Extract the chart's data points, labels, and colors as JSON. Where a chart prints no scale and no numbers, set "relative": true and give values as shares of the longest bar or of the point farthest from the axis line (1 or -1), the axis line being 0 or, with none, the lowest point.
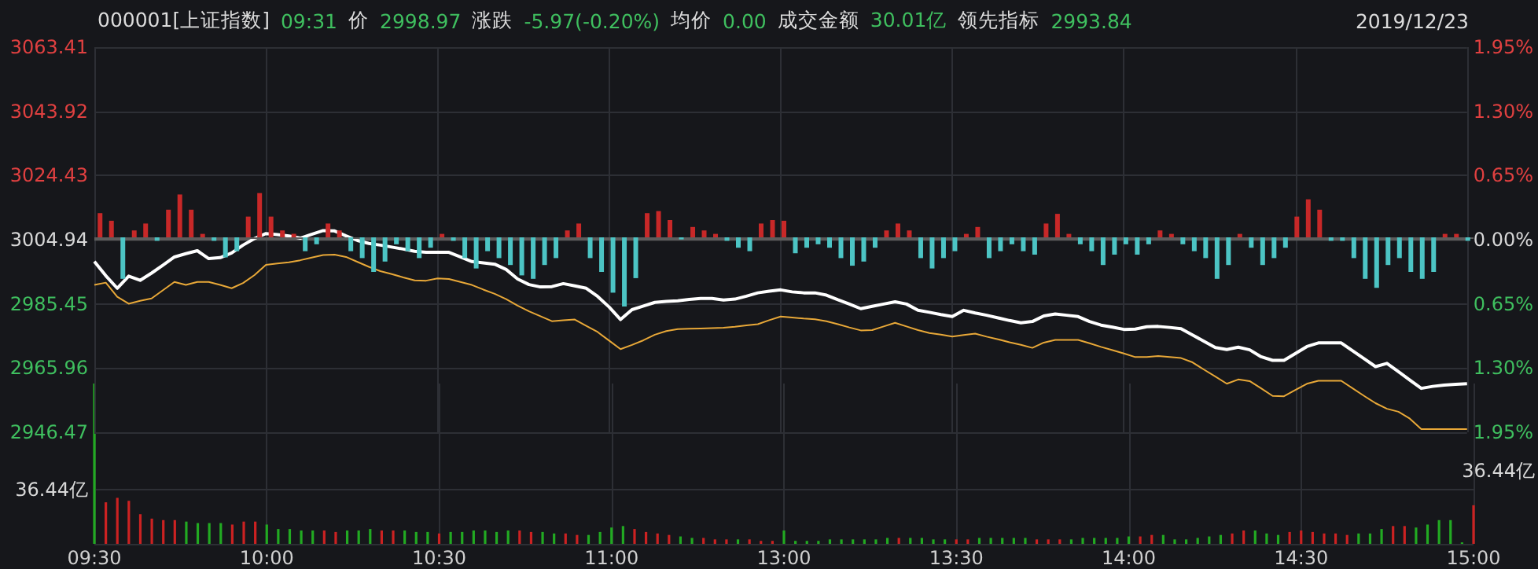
{
  "chart_data": [
    {
      "type": "line",
      "annotations": [
        "000001[上证指数]",
        "09:31",
        "价",
        "2998.97",
        "涨跌",
        "-5.97(-0.20%)",
        "均价",
        "0.00",
        "成交金额",
        "30.01亿",
        "领先指标",
        "2993.84",
        "2019/12/23"
      ],
      "categories": [
        null,
        null,
        null,
        null,
        null,
        null,
        null,
        null,
        null,
        null,
        null,
        null,
        null,
        null,
        null,
        null,
        null,
        null,
        null,
        null,
        null,
        null,
        null,
        null,
        null,
        null,
        null,
        null,
        null,
        null,
        null,
        null,
        null,
        null,
        null,
        null,
        null,
        null,
        null,
        null,
        null,
        null,
        null,
        null,
        null,
        null,
        null,
        null,
        null,
        null,
        null,
        null,
        null,
        null,
        null,
        null,
        null,
        null,
        null,
        null,
        null,
        null,
        null,
        null,
        null,
        null,
        null,
        null,
        null,
        null,
        null,
        null,
        null,
        null,
        null,
        null,
        null,
        null,
        null,
        null,
        null,
        null,
        null,
        null,
        null,
        null,
        null,
        null,
        null,
        null,
        null,
        null,
        null,
        null,
        null,
        null,
        null,
        null,
        null,
        null,
        null,
        null,
        null,
        null,
        null,
        null,
        null,
        null,
        null,
        null,
        null,
        null,
        null,
        null,
        null,
        null,
        null,
        null,
        null,
        null,
        null
      ],
      "series": [
        {
          "color": "#ffffff",
          "values": [
            2998.3,
            2994.0,
            2990.2,
            2993.9,
            2992.6,
            2994.8,
            2997.2,
            2999.7,
            3000.7,
            3001.6,
            2999.2,
            2999.5,
            3000.9,
            3003.3,
            3005.3,
            3006.8,
            3006.5,
            3006.1,
            3005.4,
            3006.6,
            3007.7,
            3007.6,
            3006.1,
            3004.7,
            3003.8,
            3003.3,
            3002.7,
            3002.1,
            3001.4,
            3001.1,
            3001.1,
            3001.1,
            2999.7,
            2998.3,
            2997.9,
            2997.5,
            2995.9,
            2993.0,
            2991.3,
            2990.6,
            2990.7,
            2991.6,
            2990.9,
            2990.2,
            2987.7,
            2984.5,
            2980.7,
            2983.7,
            2984.8,
            2985.9,
            2986.2,
            2986.4,
            2986.8,
            2987.1,
            2987.1,
            2986.6,
            2986.9,
            2987.8,
            2988.8,
            2989.3,
            2989.7,
            2989.1,
            2988.8,
            2988.8,
            2988.1,
            2986.7,
            2985.4,
            2984.0,
            2984.7,
            2985.4,
            2986.1,
            2985.4,
            2983.5,
            2982.9,
            2982.2,
            2981.6,
            2983.5,
            2982.7,
            2982.0,
            2981.2,
            2980.4,
            2979.7,
            2980.1,
            2981.8,
            2982.4,
            2982.0,
            2981.6,
            2980.1,
            2979.0,
            2978.4,
            2977.7,
            2977.8,
            2978.5,
            2978.6,
            2978.3,
            2977.9,
            2976.0,
            2974.1,
            2972.2,
            2971.6,
            2972.3,
            2971.5,
            2969.4,
            2968.3,
            2968.3,
            2970.4,
            2972.5,
            2973.6,
            2973.6,
            2973.6,
            2971.2,
            2968.8,
            2966.4,
            2967.4,
            2964.9,
            2962.3,
            2959.8,
            2960.4,
            2960.8,
            2961.0,
            2961.2
          ]
        },
        {
          "color": "#e8a838",
          "values": [
            2991.2,
            2991.9,
            2987.6,
            2985.5,
            2986.4,
            2987.1,
            2989.6,
            2992.1,
            2991.2,
            2992.1,
            2992.1,
            2991.2,
            2990.2,
            2991.8,
            2994.2,
            2997.3,
            2997.7,
            2998.1,
            2998.7,
            2999.5,
            3000.3,
            3000.4,
            2999.7,
            2998.2,
            2996.7,
            2995.4,
            2994.5,
            2993.5,
            2992.6,
            2992.5,
            2993.2,
            2993.0,
            2992.1,
            2991.2,
            2989.8,
            2988.5,
            2986.9,
            2984.9,
            2983.2,
            2981.7,
            2980.2,
            2980.5,
            2980.7,
            2978.8,
            2976.9,
            2974.3,
            2971.7,
            2973.0,
            2974.4,
            2976.1,
            2977.2,
            2977.8,
            2977.9,
            2978.0,
            2978.1,
            2978.2,
            2978.5,
            2978.9,
            2979.3,
            2980.5,
            2981.6,
            2981.3,
            2981.0,
            2980.8,
            2980.2,
            2979.3,
            2978.3,
            2977.4,
            2977.5,
            2978.6,
            2979.7,
            2978.6,
            2977.5,
            2976.6,
            2976.1,
            2975.5,
            2976.0,
            2976.4,
            2975.5,
            2974.7,
            2973.8,
            2973.0,
            2972.1,
            2973.7,
            2974.5,
            2974.5,
            2974.5,
            2973.5,
            2972.4,
            2971.4,
            2970.4,
            2969.3,
            2969.3,
            2969.6,
            2969.3,
            2969.0,
            2967.7,
            2965.5,
            2963.4,
            2961.2,
            2962.5,
            2962.0,
            2959.8,
            2957.5,
            2957.4,
            2959.3,
            2961.2,
            2962.1,
            2962.1,
            2962.1,
            2959.8,
            2957.5,
            2955.3,
            2953.6,
            2952.7,
            2950.6,
            2947.4,
            2947.4,
            2947.4,
            2947.4,
            2947.4
          ]
        }
      ],
      "ylim": [
        2946.47,
        3063.41
      ],
      "yticks": [
        2946.47,
        2965.96,
        2985.45,
        3004.94,
        3024.43,
        3043.92,
        3063.41
      ],
      "y2lim": [
        -1.95,
        1.95
      ],
      "y2ticks": [
        {
          "value": -1.95,
          "label": "1.95%"
        },
        {
          "value": -1.3,
          "label": "1.30%"
        },
        {
          "value": -0.65,
          "label": "0.65%"
        },
        {
          "value": 0,
          "label": "0.00%"
        },
        {
          "value": 0.65,
          "label": "0.65%"
        },
        {
          "value": 1.3,
          "label": "1.30%"
        },
        {
          "value": 1.95,
          "label": "1.95%"
        }
      ],
      "ref_lines": [
        {
          "axis": "y",
          "value": 3004.94,
          "color": "#5c5c5c"
        }
      ],
      "grid": true,
      "tick_labels": "y"
    },
    {
      "type": "bar",
      "relative": true,
      "categories": [
        null,
        null,
        null,
        null,
        null,
        null,
        null,
        null,
        null,
        null,
        null,
        null,
        null,
        null,
        null,
        null,
        null,
        null,
        null,
        null,
        null,
        null,
        null,
        null,
        null,
        null,
        null,
        null,
        null,
        null,
        null,
        null,
        null,
        null,
        null,
        null,
        null,
        null,
        null,
        null,
        null,
        null,
        null,
        null,
        null,
        null,
        null,
        null,
        null,
        null,
        null,
        null,
        null,
        null,
        null,
        null,
        null,
        null,
        null,
        null,
        null,
        null,
        null,
        null,
        null,
        null,
        null,
        null,
        null,
        null,
        null,
        null,
        null,
        null,
        null,
        null,
        null,
        null,
        null,
        null,
        null,
        null,
        null,
        null,
        null,
        null,
        null,
        null,
        null,
        null,
        null,
        null,
        null,
        null,
        null,
        null,
        null,
        null,
        null,
        null,
        null,
        null,
        null,
        null,
        null,
        null,
        null,
        null,
        null,
        null,
        null,
        null,
        null,
        null,
        null,
        null,
        null,
        null,
        null,
        null,
        null
      ],
      "values": [
        0.35,
        0.24,
        -0.6,
        0.1,
        0.2,
        -0.05,
        0.4,
        0.62,
        0.4,
        0.05,
        -0.05,
        -0.29,
        -0.2,
        0.3,
        0.64,
        0.3,
        0.1,
        0.05,
        -0.2,
        -0.1,
        0.2,
        0.1,
        -0.2,
        -0.3,
        -0.5,
        -0.35,
        -0.1,
        -0.2,
        -0.3,
        -0.15,
        0.05,
        -0.05,
        -0.3,
        -0.45,
        -0.2,
        -0.3,
        -0.4,
        -0.55,
        -0.6,
        -0.4,
        -0.3,
        0.1,
        0.2,
        -0.3,
        -0.5,
        -0.8,
        -1,
        -0.59,
        0.35,
        0.38,
        0.25,
        -0.03,
        0.15,
        0.1,
        0.05,
        -0.05,
        -0.15,
        -0.2,
        0.2,
        0.25,
        0.24,
        -0.23,
        -0.15,
        -0.1,
        -0.15,
        -0.3,
        -0.41,
        -0.35,
        -0.15,
        0.1,
        0.2,
        0.1,
        -0.3,
        -0.45,
        -0.3,
        -0.2,
        0.05,
        0.15,
        -0.3,
        -0.2,
        -0.1,
        -0.2,
        -0.25,
        0.2,
        0.34,
        0.05,
        -0.1,
        -0.2,
        -0.4,
        -0.25,
        -0.1,
        -0.25,
        -0.1,
        0.1,
        0.05,
        -0.1,
        -0.2,
        -0.3,
        -0.6,
        -0.4,
        0.05,
        -0.15,
        -0.4,
        -0.3,
        -0.15,
        0.3,
        0.55,
        0.4,
        -0.05,
        -0.05,
        -0.3,
        -0.6,
        -0.73,
        -0.4,
        -0.3,
        -0.5,
        -0.6,
        -0.5,
        0.05,
        0.05,
        -0.05
      ],
      "colors": [
        "#c82828",
        "#c82828",
        "#4cc4c4",
        "#c82828",
        "#c82828",
        "#4cc4c4",
        "#c82828",
        "#c82828",
        "#c82828",
        "#c82828",
        "#4cc4c4",
        "#4cc4c4",
        "#4cc4c4",
        "#c82828",
        "#c82828",
        "#c82828",
        "#c82828",
        "#c82828",
        "#4cc4c4",
        "#4cc4c4",
        "#c82828",
        "#c82828",
        "#4cc4c4",
        "#4cc4c4",
        "#4cc4c4",
        "#4cc4c4",
        "#4cc4c4",
        "#4cc4c4",
        "#4cc4c4",
        "#4cc4c4",
        "#c82828",
        "#4cc4c4",
        "#4cc4c4",
        "#4cc4c4",
        "#4cc4c4",
        "#4cc4c4",
        "#4cc4c4",
        "#4cc4c4",
        "#4cc4c4",
        "#4cc4c4",
        "#4cc4c4",
        "#c82828",
        "#c82828",
        "#4cc4c4",
        "#4cc4c4",
        "#4cc4c4",
        "#4cc4c4",
        "#4cc4c4",
        "#c82828",
        "#c82828",
        "#c82828",
        "#4cc4c4",
        "#c82828",
        "#c82828",
        "#c82828",
        "#4cc4c4",
        "#4cc4c4",
        "#4cc4c4",
        "#c82828",
        "#c82828",
        "#c82828",
        "#4cc4c4",
        "#4cc4c4",
        "#4cc4c4",
        "#4cc4c4",
        "#4cc4c4",
        "#4cc4c4",
        "#4cc4c4",
        "#4cc4c4",
        "#c82828",
        "#c82828",
        "#c82828",
        "#4cc4c4",
        "#4cc4c4",
        "#4cc4c4",
        "#4cc4c4",
        "#c82828",
        "#c82828",
        "#4cc4c4",
        "#4cc4c4",
        "#4cc4c4",
        "#4cc4c4",
        "#4cc4c4",
        "#c82828",
        "#c82828",
        "#c82828",
        "#4cc4c4",
        "#4cc4c4",
        "#4cc4c4",
        "#4cc4c4",
        "#4cc4c4",
        "#4cc4c4",
        "#4cc4c4",
        "#c82828",
        "#c82828",
        "#4cc4c4",
        "#4cc4c4",
        "#4cc4c4",
        "#4cc4c4",
        "#4cc4c4",
        "#c82828",
        "#4cc4c4",
        "#4cc4c4",
        "#4cc4c4",
        "#4cc4c4",
        "#c82828",
        "#c82828",
        "#c82828",
        "#4cc4c4",
        "#4cc4c4",
        "#4cc4c4",
        "#4cc4c4",
        "#4cc4c4",
        "#4cc4c4",
        "#4cc4c4",
        "#4cc4c4",
        "#4cc4c4",
        "#4cc4c4",
        "#c82828",
        "#c82828",
        "#4cc4c4"
      ]
    },
    {
      "type": "bar",
      "annotations": [
        "36.44亿"
      ],
      "categories": [
        "09:30",
        null,
        null,
        null,
        null,
        null,
        null,
        null,
        null,
        null,
        null,
        null,
        null,
        null,
        null,
        "10:00",
        null,
        null,
        null,
        null,
        null,
        null,
        null,
        null,
        null,
        null,
        null,
        null,
        null,
        null,
        "10:30",
        null,
        null,
        null,
        null,
        null,
        null,
        null,
        null,
        null,
        null,
        null,
        null,
        null,
        null,
        "11:00",
        null,
        null,
        null,
        null,
        null,
        null,
        null,
        null,
        null,
        null,
        null,
        null,
        null,
        null,
        "13:00",
        null,
        null,
        null,
        null,
        null,
        null,
        null,
        null,
        null,
        null,
        null,
        null,
        null,
        null,
        "13:30",
        null,
        null,
        null,
        null,
        null,
        null,
        null,
        null,
        null,
        null,
        null,
        null,
        null,
        null,
        "14:00",
        null,
        null,
        null,
        null,
        null,
        null,
        null,
        null,
        null,
        null,
        null,
        null,
        null,
        null,
        "14:30",
        null,
        null,
        null,
        null,
        null,
        null,
        null,
        null,
        null,
        null,
        null,
        null,
        null,
        null,
        "15:00"
      ],
      "values": [
        108,
        28,
        31,
        29,
        20,
        17,
        16,
        16,
        15,
        14,
        14,
        14,
        13,
        15,
        15,
        13,
        10,
        10,
        9,
        9,
        9,
        8,
        9,
        9,
        10,
        9,
        9,
        9,
        8,
        8,
        7,
        8,
        8,
        9,
        9,
        8,
        9,
        9,
        8,
        8,
        7,
        7,
        6,
        6,
        8,
        11,
        12,
        10,
        8,
        7,
        6,
        5,
        4,
        4,
        3,
        3,
        3,
        3,
        2,
        2,
        9,
        2,
        2,
        2,
        3,
        3,
        3,
        3,
        3,
        4,
        4,
        4,
        4,
        3,
        3,
        3,
        3,
        4,
        4,
        4,
        4,
        4,
        3,
        3,
        3,
        3,
        4,
        4,
        4,
        4,
        5,
        5,
        6,
        6,
        3,
        3,
        4,
        5,
        6,
        7,
        9,
        9,
        7,
        6,
        8,
        9,
        8,
        7,
        7,
        6,
        7,
        7,
        10,
        12,
        12,
        11,
        13,
        16,
        16,
        1,
        26
      ],
      "colors": [
        "#22aa22",
        "#cc2222",
        "#cc2222",
        "#cc2222",
        "#cc2222",
        "#cc2222",
        "#cc2222",
        "#cc2222",
        "#22aa22",
        "#22aa22",
        "#22aa22",
        "#22aa22",
        "#cc2222",
        "#cc2222",
        "#cc2222",
        "#22aa22",
        "#22aa22",
        "#22aa22",
        "#22aa22",
        "#22aa22",
        "#cc2222",
        "#cc2222",
        "#22aa22",
        "#22aa22",
        "#22aa22",
        "#cc2222",
        "#cc2222",
        "#22aa22",
        "#22aa22",
        "#22aa22",
        "#cc2222",
        "#22aa22",
        "#22aa22",
        "#22aa22",
        "#22aa22",
        "#22aa22",
        "#22aa22",
        "#cc2222",
        "#cc2222",
        "#22aa22",
        "#22aa22",
        "#cc2222",
        "#cc2222",
        "#22aa22",
        "#22aa22",
        "#22aa22",
        "#22aa22",
        "#cc2222",
        "#cc2222",
        "#cc2222",
        "#cc2222",
        "#22aa22",
        "#22aa22",
        "#cc2222",
        "#cc2222",
        "#cc2222",
        "#22aa22",
        "#cc2222",
        "#cc2222",
        "#cc2222",
        "#22aa22",
        "#22aa22",
        "#22aa22",
        "#22aa22",
        "#22aa22",
        "#22aa22",
        "#22aa22",
        "#22aa22",
        "#22aa22",
        "#22aa22",
        "#cc2222",
        "#22aa22",
        "#22aa22",
        "#22aa22",
        "#22aa22",
        "#cc2222",
        "#cc2222",
        "#22aa22",
        "#22aa22",
        "#22aa22",
        "#22aa22",
        "#22aa22",
        "#cc2222",
        "#cc2222",
        "#cc2222",
        "#22aa22",
        "#22aa22",
        "#22aa22",
        "#22aa22",
        "#22aa22",
        "#22aa22",
        "#cc2222",
        "#cc2222",
        "#22aa22",
        "#22aa22",
        "#22aa22",
        "#22aa22",
        "#22aa22",
        "#22aa22",
        "#cc2222",
        "#cc2222",
        "#22aa22",
        "#22aa22",
        "#22aa22",
        "#cc2222",
        "#cc2222",
        "#cc2222",
        "#cc2222",
        "#cc2222",
        "#cc2222",
        "#22aa22",
        "#22aa22",
        "#22aa22",
        "#cc2222",
        "#cc2222",
        "#22aa22",
        "#22aa22",
        "#22aa22",
        "#22aa22",
        "#22aa22",
        "#cc2222"
      ],
      "ylim": [
        0,
        108
      ],
      "yticks": [
        {
          "value": 0,
          "label": null
        },
        {
          "value": 36.44,
          "label": "36.44亿"
        }
      ],
      "grid": true
    }
  ]
}
